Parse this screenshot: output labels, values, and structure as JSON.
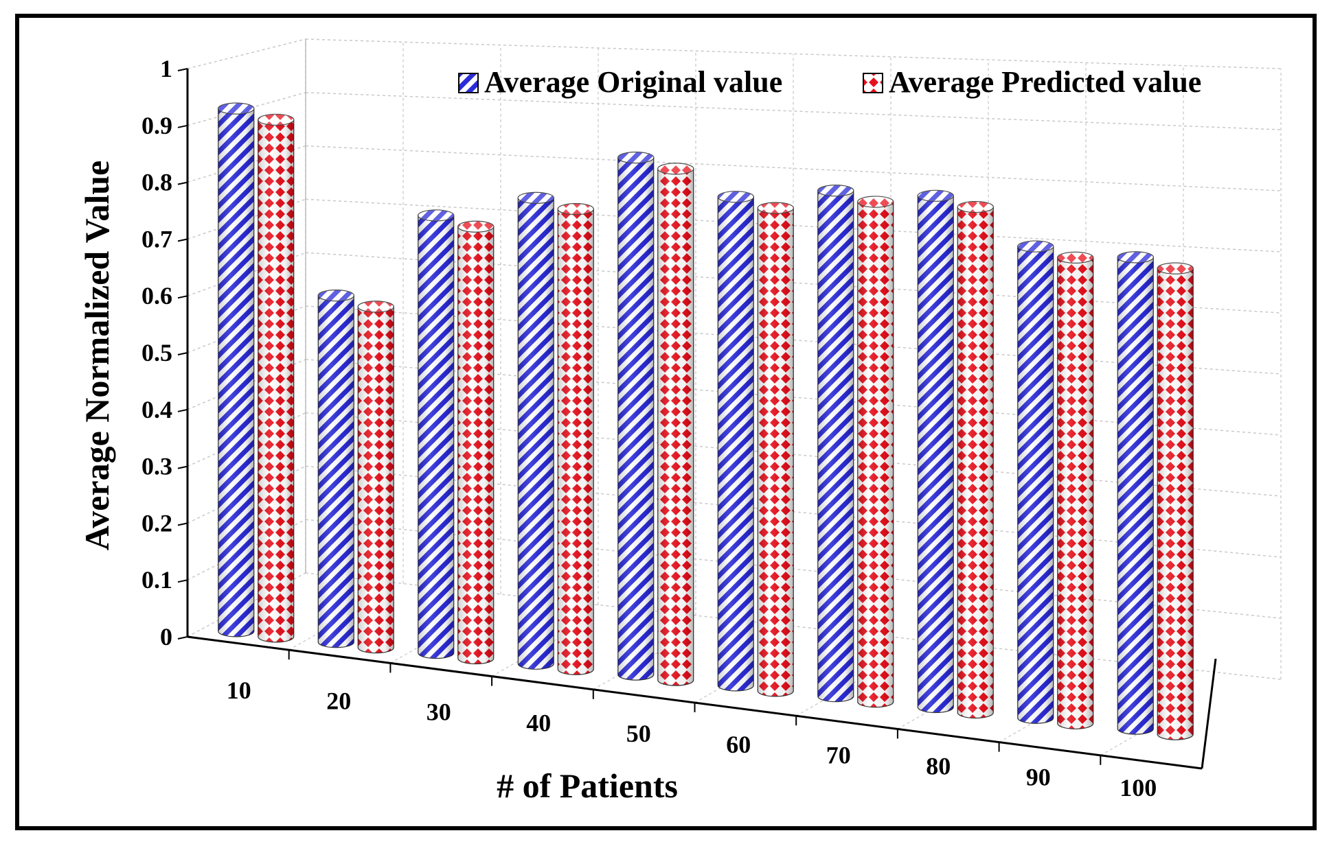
{
  "chart_data": {
    "type": "bar",
    "style": "3d-cylinder",
    "title": "",
    "xlabel": "# of Patients",
    "ylabel": "Average Normalized Value",
    "categories": [
      "10",
      "20",
      "30",
      "40",
      "50",
      "60",
      "70",
      "80",
      "90",
      "100"
    ],
    "series": [
      {
        "name": "Average Original value",
        "pattern": "diagonal-stripes",
        "color": "#2b2bd9",
        "values": [
          0.92,
          0.61,
          0.77,
          0.82,
          0.91,
          0.86,
          0.89,
          0.9,
          0.83,
          0.83
        ]
      },
      {
        "name": "Average Predicted value",
        "pattern": "checker-diamonds",
        "color": "#e8101c",
        "values": [
          0.91,
          0.6,
          0.76,
          0.81,
          0.9,
          0.85,
          0.88,
          0.89,
          0.82,
          0.82
        ]
      }
    ],
    "yticks": [
      "0",
      "0.1",
      "0.2",
      "0.3",
      "0.4",
      "0.5",
      "0.6",
      "0.7",
      "0.8",
      "0.9",
      "1"
    ],
    "ylim": [
      0,
      1
    ],
    "grid": true,
    "legend_position": "top-right"
  }
}
